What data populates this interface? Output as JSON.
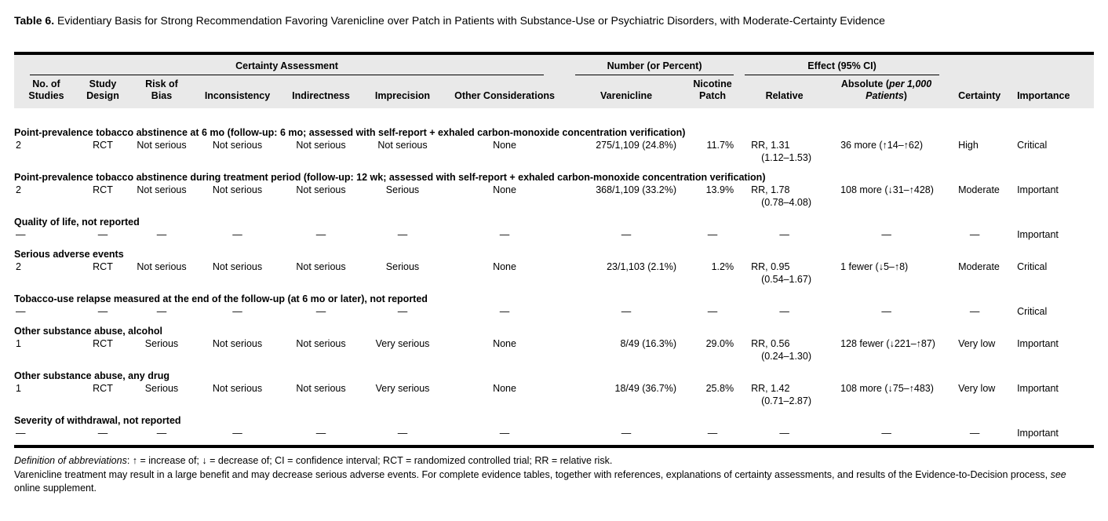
{
  "title": {
    "label": "Table 6.",
    "text": "Evidentiary Basis for Strong Recommendation Favoring Varenicline over Patch in Patients with Substance-Use or Psychiatric Disorders, with Moderate-Certainty Evidence"
  },
  "table": {
    "spanners": {
      "certainty": "Certainty Assessment",
      "number": "Number (or Percent)",
      "effect": "Effect (95% CI)"
    },
    "columns": [
      [
        "No. of",
        "Studies"
      ],
      [
        "Study",
        "Design"
      ],
      [
        "Risk of",
        "Bias"
      ],
      [
        "Inconsistency"
      ],
      [
        "Indirectness"
      ],
      [
        "Imprecision"
      ],
      [
        "Other Considerations"
      ],
      [
        "Varenicline"
      ],
      [
        "Nicotine",
        "Patch"
      ],
      [
        "Relative"
      ],
      [
        "Certainty"
      ],
      [
        "Importance"
      ]
    ],
    "absolute_header": {
      "open": "Absolute (",
      "italic_line1": "per 1,000",
      "italic_line2": "Patients",
      "close": ")"
    },
    "groups": [
      {
        "outcome": "Point-prevalence tobacco abstinence at 6 mo (follow-up: 6 mo; assessed with self-report + exhaled carbon-monoxide concentration verification)",
        "row": {
          "studies": "2",
          "design": "RCT",
          "risk_of_bias": "Not serious",
          "inconsistency": "Not serious",
          "indirectness": "Not serious",
          "imprecision": "Not serious",
          "other": "None",
          "varenicline": "275/1,109 (24.8%)",
          "patch": "11.7%",
          "relative": "RR, 1.31",
          "relative_ci": "(1.12–1.53)",
          "absolute": "36 more (↑14–↑62)",
          "certainty": "High",
          "importance": "Critical"
        }
      },
      {
        "outcome": "Point-prevalence tobacco abstinence during treatment period (follow-up: 12 wk; assessed with self-report + exhaled carbon-monoxide concentration verification)",
        "row": {
          "studies": "2",
          "design": "RCT",
          "risk_of_bias": "Not serious",
          "inconsistency": "Not serious",
          "indirectness": "Not serious",
          "imprecision": "Serious",
          "other": "None",
          "varenicline": "368/1,109 (33.2%)",
          "patch": "13.9%",
          "relative": "RR, 1.78",
          "relative_ci": "(0.78–4.08)",
          "absolute": "108 more (↓31–↑428)",
          "certainty": "Moderate",
          "importance": "Important"
        }
      },
      {
        "outcome": "Quality of life, not reported",
        "row": {
          "studies": "—",
          "design": "—",
          "risk_of_bias": "—",
          "inconsistency": "—",
          "indirectness": "—",
          "imprecision": "—",
          "other": "—",
          "varenicline": "—",
          "patch": "—",
          "relative": "—",
          "relative_ci": "",
          "absolute": "—",
          "certainty": "—",
          "importance": "Important"
        }
      },
      {
        "outcome": "Serious adverse events",
        "row": {
          "studies": "2",
          "design": "RCT",
          "risk_of_bias": "Not serious",
          "inconsistency": "Not serious",
          "indirectness": "Not serious",
          "imprecision": "Serious",
          "other": "None",
          "varenicline": "23/1,103 (2.1%)",
          "patch": "1.2%",
          "relative": "RR, 0.95",
          "relative_ci": "(0.54–1.67)",
          "absolute": "1 fewer (↓5–↑8)",
          "certainty": "Moderate",
          "importance": "Critical"
        }
      },
      {
        "outcome": "Tobacco-use relapse measured at the end of the follow-up (at 6 mo or later), not reported",
        "row": {
          "studies": "—",
          "design": "—",
          "risk_of_bias": "—",
          "inconsistency": "—",
          "indirectness": "—",
          "imprecision": "—",
          "other": "—",
          "varenicline": "—",
          "patch": "—",
          "relative": "—",
          "relative_ci": "",
          "absolute": "—",
          "certainty": "—",
          "importance": "Critical"
        }
      },
      {
        "outcome": "Other substance abuse, alcohol",
        "row": {
          "studies": "1",
          "design": "RCT",
          "risk_of_bias": "Serious",
          "inconsistency": "Not serious",
          "indirectness": "Not serious",
          "imprecision": "Very serious",
          "other": "None",
          "varenicline": "8/49 (16.3%)",
          "patch": "29.0%",
          "relative": "RR, 0.56",
          "relative_ci": "(0.24–1.30)",
          "absolute": "128 fewer (↓221–↑87)",
          "certainty": "Very low",
          "importance": "Important"
        }
      },
      {
        "outcome": "Other substance abuse, any drug",
        "row": {
          "studies": "1",
          "design": "RCT",
          "risk_of_bias": "Serious",
          "inconsistency": "Not serious",
          "indirectness": "Not serious",
          "imprecision": "Very serious",
          "other": "None",
          "varenicline": "18/49 (36.7%)",
          "patch": "25.8%",
          "relative": "RR, 1.42",
          "relative_ci": "(0.71–2.87)",
          "absolute": "108 more (↓75–↑483)",
          "certainty": "Very low",
          "importance": "Important"
        }
      },
      {
        "outcome": "Severity of withdrawal, not reported",
        "row": {
          "studies": "—",
          "design": "—",
          "risk_of_bias": "—",
          "inconsistency": "—",
          "indirectness": "—",
          "imprecision": "—",
          "other": "—",
          "varenicline": "—",
          "patch": "—",
          "relative": "—",
          "relative_ci": "",
          "absolute": "—",
          "certainty": "—",
          "importance": "Important"
        }
      }
    ]
  },
  "footnotes": {
    "abbrev_label": "Definition of abbreviations",
    "abbrev_rest": ": ↑ = increase of; ↓ = decrease of; CI = confidence interval; RCT = randomized controlled trial; RR = relative risk.",
    "note_part1": "Varenicline treatment may result in a large benefit and may decrease serious adverse events. For complete evidence tables, together with references, explanations of certainty assessments, and results of the Evidence-to-Decision process, ",
    "note_see": "see",
    "note_part2": " online supplement."
  }
}
